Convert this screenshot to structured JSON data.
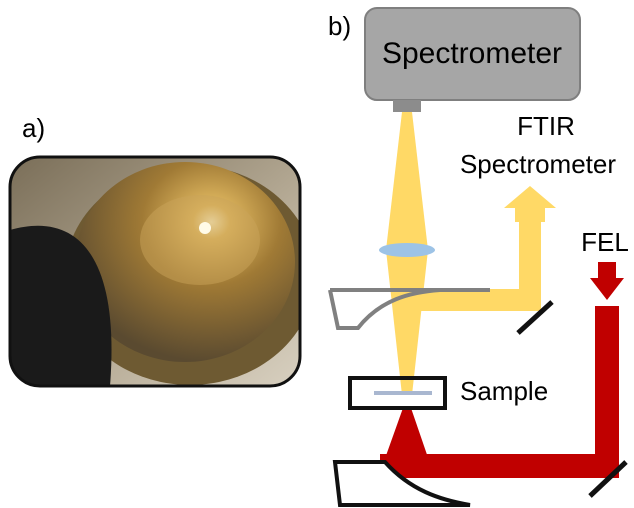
{
  "panel_a": {
    "label": "a)"
  },
  "panel_b": {
    "label": "b)",
    "spectrometer": "Spectrometer",
    "ftir": {
      "line1": "FTIR",
      "line2": "Spectrometer"
    },
    "fel": "FEL",
    "sample": "Sample"
  }
}
